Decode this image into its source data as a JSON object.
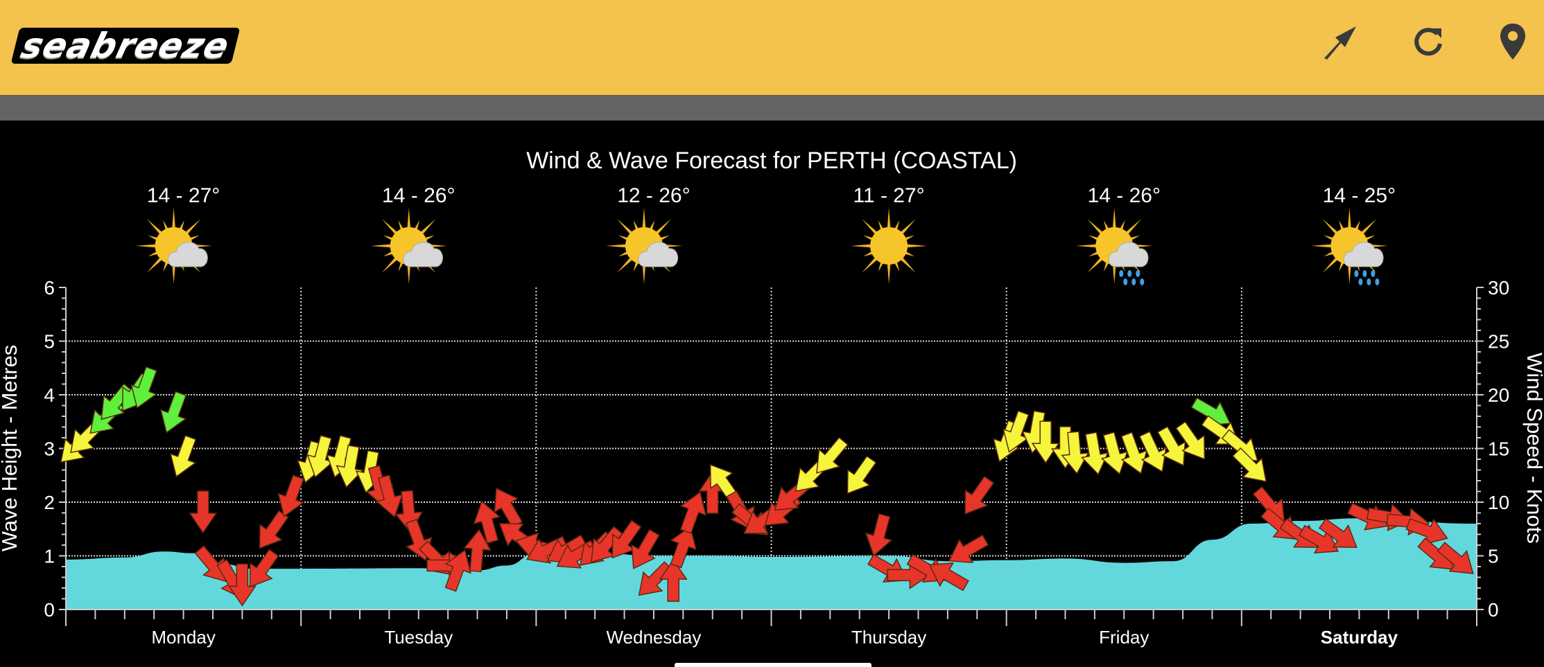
{
  "header": {
    "logo_text": "seabreeze",
    "icons": [
      "wind-direction-icon",
      "refresh-icon",
      "location-pin-icon"
    ]
  },
  "colors": {
    "header_bg": "#f3c34e",
    "wave_fill": "#62d8dc",
    "wind_red": "#e8352a",
    "wind_yellow": "#f5f53c",
    "wind_green": "#5ef03c"
  },
  "chart_data": {
    "type": "area",
    "title": "Wind & Wave Forecast for PERTH (COASTAL)",
    "ylabel_left": "Wave Height - Metres",
    "ylabel_right": "Wind Speed - Knots",
    "ylim_left": [
      0,
      6
    ],
    "ylim_right": [
      0,
      30
    ],
    "yticks_left": [
      "0",
      "1",
      "2",
      "3",
      "4",
      "5",
      "6"
    ],
    "yticks_right": [
      "0",
      "5",
      "10",
      "15",
      "20",
      "25",
      "30"
    ],
    "grid": true,
    "days": [
      {
        "label": "Monday",
        "temp": "14 - 27°",
        "weather_icon": "partly-cloudy",
        "bold": false
      },
      {
        "label": "Tuesday",
        "temp": "14 - 26°",
        "weather_icon": "partly-cloudy",
        "bold": false
      },
      {
        "label": "Wednesday",
        "temp": "12 - 26°",
        "weather_icon": "partly-cloudy",
        "bold": false
      },
      {
        "label": "Thursday",
        "temp": "11 - 27°",
        "weather_icon": "sunny",
        "bold": false
      },
      {
        "label": "Friday",
        "temp": "14 - 26°",
        "weather_icon": "partly-cloudy-showers",
        "bold": false
      },
      {
        "label": "Saturday",
        "temp": "14 - 25°",
        "weather_icon": "partly-cloudy-showers",
        "bold": true
      }
    ],
    "wave_height_m": {
      "columns": [
        "day",
        "hour",
        "metres"
      ],
      "points": [
        [
          "Monday",
          0,
          0.93
        ],
        [
          "Monday",
          6,
          0.97
        ],
        [
          "Monday",
          10,
          1.08
        ],
        [
          "Monday",
          13,
          1.05
        ],
        [
          "Monday",
          16,
          0.85
        ],
        [
          "Monday",
          19,
          0.76
        ],
        [
          "Tuesday",
          0,
          0.76
        ],
        [
          "Tuesday",
          12,
          0.77
        ],
        [
          "Tuesday",
          18,
          0.73
        ],
        [
          "Tuesday",
          21,
          0.82
        ],
        [
          "Wednesday",
          0,
          1.05
        ],
        [
          "Wednesday",
          6,
          1.06
        ],
        [
          "Wednesday",
          12,
          1.0
        ],
        [
          "Wednesday",
          18,
          1.0
        ],
        [
          "Thursday",
          0,
          0.98
        ],
        [
          "Thursday",
          12,
          1.0
        ],
        [
          "Thursday",
          18,
          0.9
        ],
        [
          "Friday",
          0,
          0.92
        ],
        [
          "Friday",
          6,
          0.95
        ],
        [
          "Friday",
          12,
          0.87
        ],
        [
          "Friday",
          17,
          0.9
        ],
        [
          "Friday",
          21,
          1.3
        ],
        [
          "Saturday",
          1,
          1.6
        ],
        [
          "Saturday",
          6,
          1.65
        ],
        [
          "Saturday",
          12,
          1.7
        ],
        [
          "Saturday",
          24,
          1.6
        ]
      ]
    },
    "wind": {
      "columns": [
        "day",
        "hour",
        "knots",
        "heading_deg",
        "color"
      ],
      "points": [
        [
          "Monday",
          1,
          15.1,
          225,
          "yellow"
        ],
        [
          "Monday",
          2,
          16,
          225,
          "yellow"
        ],
        [
          "Monday",
          4,
          17.8,
          225,
          "green"
        ],
        [
          "Monday",
          5,
          19.2,
          220,
          "green"
        ],
        [
          "Monday",
          7,
          20.1,
          215,
          "green"
        ],
        [
          "Monday",
          8,
          20.6,
          200,
          "green"
        ],
        [
          "Monday",
          11,
          18.3,
          200,
          "green"
        ],
        [
          "Monday",
          12,
          14.2,
          200,
          "yellow"
        ],
        [
          "Monday",
          14,
          9.1,
          180,
          "red"
        ],
        [
          "Monday",
          15,
          4.1,
          140,
          "red"
        ],
        [
          "Monday",
          17,
          2.7,
          150,
          "red"
        ],
        [
          "Monday",
          18,
          2.3,
          180,
          "red"
        ],
        [
          "Monday",
          20,
          3.7,
          215,
          "red"
        ],
        [
          "Monday",
          21,
          7.3,
          215,
          "red"
        ],
        [
          "Monday",
          23,
          10.5,
          200,
          "red"
        ],
        [
          "Tuesday",
          1,
          13.7,
          195,
          "yellow"
        ],
        [
          "Tuesday",
          2,
          14.2,
          195,
          "yellow"
        ],
        [
          "Tuesday",
          4,
          14.2,
          195,
          "yellow"
        ],
        [
          "Tuesday",
          5,
          13.3,
          190,
          "yellow"
        ],
        [
          "Tuesday",
          7,
          12.8,
          190,
          "yellow"
        ],
        [
          "Tuesday",
          8,
          11.4,
          165,
          "red"
        ],
        [
          "Tuesday",
          9,
          10.5,
          165,
          "red"
        ],
        [
          "Tuesday",
          11,
          9.1,
          175,
          "red"
        ],
        [
          "Tuesday",
          12,
          6.4,
          160,
          "red"
        ],
        [
          "Tuesday",
          14,
          4.6,
          135,
          "red"
        ],
        [
          "Tuesday",
          15,
          4.1,
          90,
          "red"
        ],
        [
          "Tuesday",
          16,
          3.7,
          20,
          "red"
        ],
        [
          "Tuesday",
          18,
          5.5,
          5,
          "red"
        ],
        [
          "Tuesday",
          19,
          8.2,
          345,
          "red"
        ],
        [
          "Tuesday",
          21,
          9.6,
          330,
          "red"
        ],
        [
          "Tuesday",
          22,
          6.9,
          305,
          "red"
        ],
        [
          "Wednesday",
          0,
          5.9,
          285,
          "red"
        ],
        [
          "Wednesday",
          1,
          5.5,
          245,
          "red"
        ],
        [
          "Wednesday",
          3,
          5.5,
          240,
          "red"
        ],
        [
          "Wednesday",
          4,
          5.0,
          240,
          "red"
        ],
        [
          "Wednesday",
          6,
          5.5,
          225,
          "red"
        ],
        [
          "Wednesday",
          7,
          5.9,
          220,
          "red"
        ],
        [
          "Wednesday",
          9,
          6.4,
          215,
          "red"
        ],
        [
          "Wednesday",
          11,
          5.5,
          210,
          "red"
        ],
        [
          "Wednesday",
          12,
          2.7,
          225,
          "red"
        ],
        [
          "Wednesday",
          14,
          2.7,
          0,
          "red"
        ],
        [
          "Wednesday",
          15,
          5.9,
          20,
          "red"
        ],
        [
          "Wednesday",
          16,
          9.1,
          20,
          "red"
        ],
        [
          "Wednesday",
          18,
          10.9,
          0,
          "red"
        ],
        [
          "Wednesday",
          19,
          11.9,
          325,
          "yellow"
        ],
        [
          "Wednesday",
          21,
          9.1,
          150,
          "red"
        ],
        [
          "Wednesday",
          22,
          8.2,
          130,
          "red"
        ],
        [
          "Wednesday",
          23,
          8.2,
          235,
          "red"
        ],
        [
          "Thursday",
          1,
          9.1,
          230,
          "red"
        ],
        [
          "Thursday",
          2,
          10.5,
          230,
          "red"
        ],
        [
          "Thursday",
          4,
          12.4,
          225,
          "yellow"
        ],
        [
          "Thursday",
          6,
          14.2,
          220,
          "yellow"
        ],
        [
          "Thursday",
          9,
          12.4,
          215,
          "yellow"
        ],
        [
          "Thursday",
          11,
          6.9,
          195,
          "red"
        ],
        [
          "Thursday",
          12,
          3.7,
          120,
          "red"
        ],
        [
          "Thursday",
          14,
          3.2,
          90,
          "red"
        ],
        [
          "Thursday",
          16,
          3.7,
          120,
          "red"
        ],
        [
          "Thursday",
          18,
          3.2,
          300,
          "red"
        ],
        [
          "Thursday",
          20,
          5.5,
          240,
          "red"
        ],
        [
          "Thursday",
          21,
          10.5,
          215,
          "red"
        ],
        [
          "Friday",
          0,
          15.6,
          200,
          "yellow"
        ],
        [
          "Friday",
          1,
          16.5,
          200,
          "yellow"
        ],
        [
          "Friday",
          3,
          16.5,
          190,
          "yellow"
        ],
        [
          "Friday",
          4,
          15.6,
          180,
          "yellow"
        ],
        [
          "Friday",
          6,
          15.1,
          180,
          "yellow"
        ],
        [
          "Friday",
          7,
          14.6,
          175,
          "yellow"
        ],
        [
          "Friday",
          9,
          14.5,
          170,
          "yellow"
        ],
        [
          "Friday",
          11,
          14.5,
          165,
          "yellow"
        ],
        [
          "Friday",
          13,
          14.5,
          160,
          "yellow"
        ],
        [
          "Friday",
          15,
          14.6,
          155,
          "yellow"
        ],
        [
          "Friday",
          17,
          15.1,
          150,
          "yellow"
        ],
        [
          "Friday",
          19,
          15.6,
          145,
          "yellow"
        ],
        [
          "Friday",
          21,
          18.3,
          120,
          "green"
        ],
        [
          "Friday",
          22,
          16.5,
          125,
          "yellow"
        ],
        [
          "Friday",
          24,
          15.1,
          130,
          "yellow"
        ],
        [
          "Saturday",
          1,
          13.3,
          135,
          "yellow"
        ],
        [
          "Saturday",
          3,
          9.6,
          140,
          "red"
        ],
        [
          "Saturday",
          4,
          7.8,
          130,
          "red"
        ],
        [
          "Saturday",
          6,
          6.9,
          125,
          "red"
        ],
        [
          "Saturday",
          8,
          6.4,
          120,
          "red"
        ],
        [
          "Saturday",
          10,
          6.9,
          125,
          "red"
        ],
        [
          "Saturday",
          13,
          8.6,
          115,
          "red"
        ],
        [
          "Saturday",
          15,
          8.6,
          100,
          "red"
        ],
        [
          "Saturday",
          17,
          8.2,
          95,
          "red"
        ],
        [
          "Saturday",
          19,
          7.3,
          110,
          "red"
        ],
        [
          "Saturday",
          20,
          5.0,
          130,
          "red"
        ],
        [
          "Saturday",
          22,
          4.6,
          130,
          "red"
        ]
      ]
    }
  }
}
